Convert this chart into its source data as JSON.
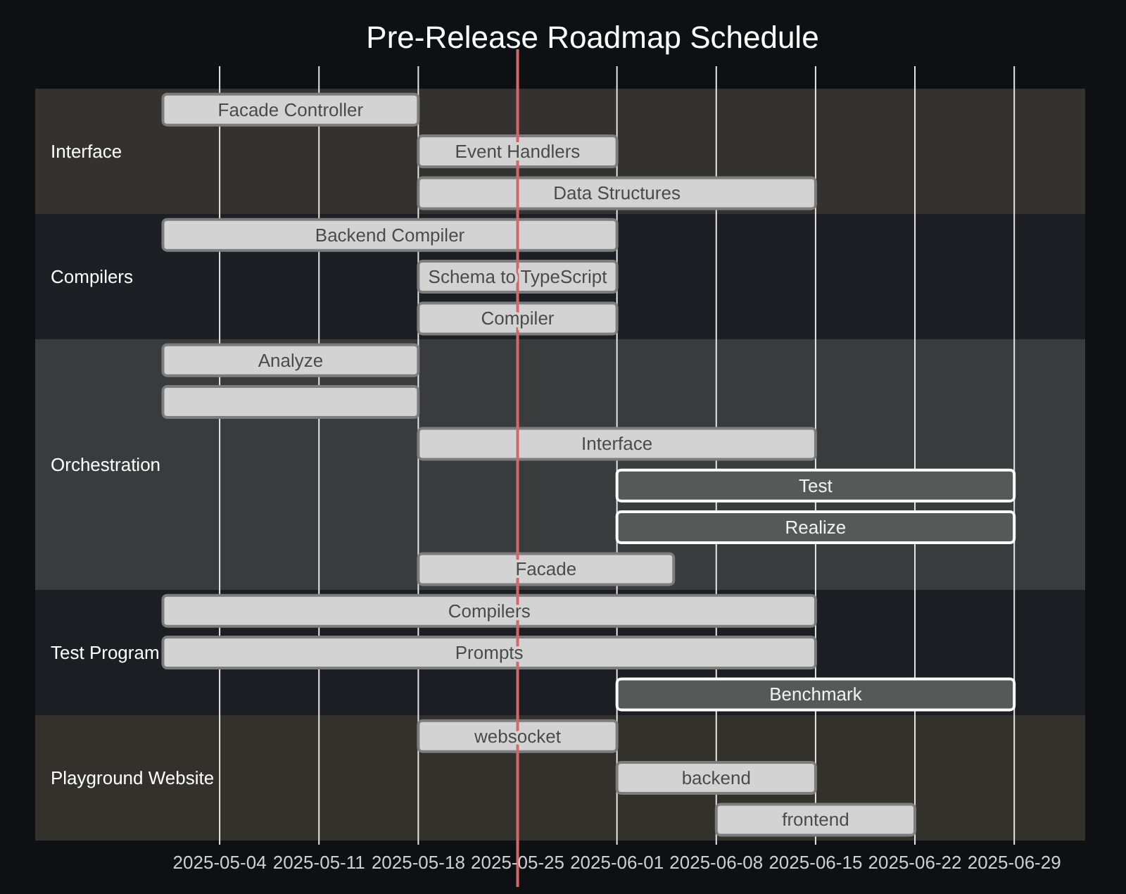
{
  "chart_data": {
    "type": "bar",
    "orientation": "horizontal",
    "title": "Pre-Release Roadmap Schedule",
    "categories": [
      "Facade Controller",
      "Event Handlers",
      "Data Structures",
      "Backend Compiler",
      "Schema to TypeScript",
      "Compiler",
      "Analyze",
      null,
      "Interface",
      "Test",
      "Realize",
      "Facade",
      "Compilers",
      "Prompts",
      "Benchmark",
      "websocket",
      "backend",
      "frontend"
    ],
    "base": [
      20208,
      20226,
      20226,
      20208,
      20226,
      20226,
      20208,
      20208,
      20226,
      20240,
      20240,
      20226,
      20208,
      20208,
      20240,
      20226,
      20240,
      20247
    ],
    "values": [
      18,
      14,
      28,
      32,
      14,
      14,
      18,
      18,
      28,
      28,
      28,
      18,
      46,
      46,
      28,
      14,
      14,
      14
    ],
    "colors": [
      "#d3d3d3",
      "#d3d3d3",
      "#d3d3d3",
      "#d3d3d3",
      "#d3d3d3",
      "#d3d3d3",
      "#d3d3d3",
      "#d3d3d3",
      "#d3d3d3",
      "#575958",
      "#575958",
      "#d3d3d3",
      "#d3d3d3",
      "#d3d3d3",
      "#575958",
      "#d3d3d3",
      "#d3d3d3",
      "#d3d3d3"
    ],
    "xlim": [
      "2025-04-21",
      "2025-07-04"
    ],
    "xticks": [
      "2025-05-04",
      "2025-05-11",
      "2025-05-18",
      "2025-05-25",
      "2025-06-01",
      "2025-06-08",
      "2025-06-15",
      "2025-06-22",
      "2025-06-29"
    ],
    "grid": "x",
    "bands": [
      {
        "axis": "y",
        "from": "Facade Controller",
        "to": "Data Structures",
        "label": "Interface",
        "color": "#33322e"
      },
      {
        "axis": "y",
        "from": "Backend Compiler",
        "to": "Compiler",
        "label": "Compilers",
        "color": "#1c1f23"
      },
      {
        "axis": "y",
        "from": "Analyze",
        "to": "Facade",
        "label": "Orchestration",
        "color": "#3a3b3d"
      },
      {
        "axis": "y",
        "from": "Compilers",
        "to": "Benchmark",
        "label": "Test Program",
        "color": "#1b1e22"
      },
      {
        "axis": "y",
        "from": "websocket",
        "to": "frontend",
        "label": "Playground Website",
        "color": "#32312c"
      }
    ],
    "ref_lines": [
      {
        "axis": "x",
        "value": "2025-05-25",
        "color": "#d06a6a"
      }
    ]
  }
}
